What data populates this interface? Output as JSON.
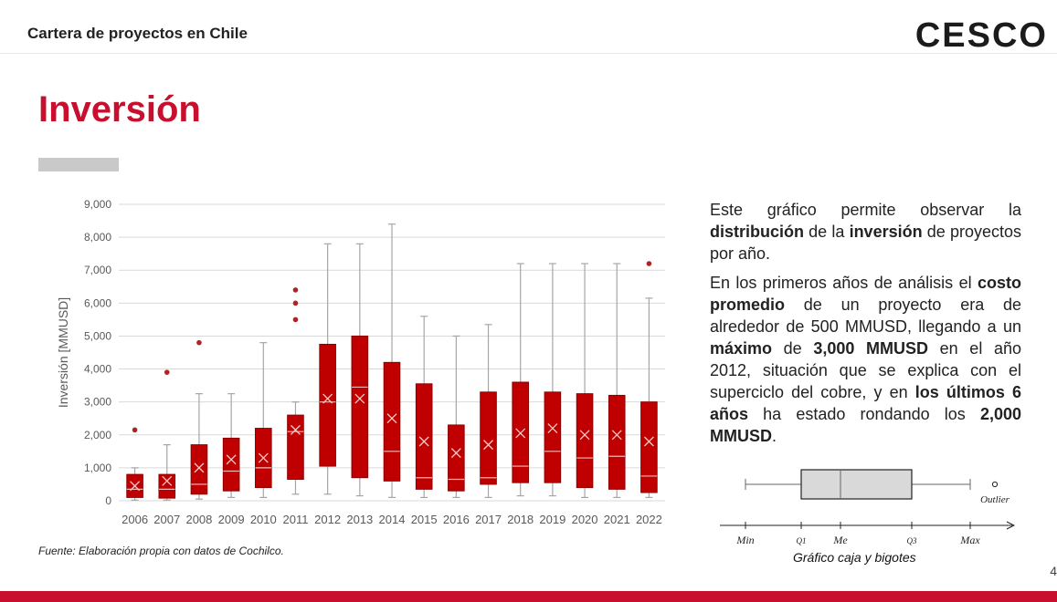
{
  "header": {
    "title": "Cartera de proyectos en Chile",
    "brand": "CESCO"
  },
  "page": {
    "title": "Inversión",
    "number": "4"
  },
  "source_note": "Fuente: Elaboración propia con datos de Cochilco.",
  "description": {
    "p1": [
      "Este gráfico permite observar la ",
      {
        "b": "distribución"
      },
      " de la ",
      {
        "b": "inversión"
      },
      " de proyectos por año."
    ],
    "p2": [
      "En los primeros años de análisis el ",
      {
        "b": "costo promedio"
      },
      " de un proyecto era de alrededor de 500 MMUSD, llegando a un ",
      {
        "b": "máximo"
      },
      " de ",
      {
        "b": "3,000 MMUSD"
      },
      " en el año 2012, situación que se explica con el superciclo del cobre, y en ",
      {
        "b": "los últimos 6 años"
      },
      " ha estado rondando los ",
      {
        "b": "2,000 MMUSD"
      },
      "."
    ]
  },
  "legend_box": {
    "labels": [
      "Min",
      "Q1",
      "Me",
      "Q3",
      "Max"
    ],
    "outlier_label": "Outlier",
    "caption": "Gráfico caja y bigotes"
  },
  "colors": {
    "accent": "#c8102e",
    "box_fill": "#c00000",
    "box_stroke": "#8b0000",
    "whisker": "#a6a6a6",
    "grid": "#d9d9d9"
  },
  "chart_data": {
    "type": "box",
    "title": "",
    "xlabel": "",
    "ylabel": "Inversión [MMUSD]",
    "ylim": [
      0,
      9000
    ],
    "yticks": [
      0,
      1000,
      2000,
      3000,
      4000,
      5000,
      6000,
      7000,
      8000,
      9000
    ],
    "ytick_labels": [
      "0",
      "1,000",
      "2,000",
      "3,000",
      "4,000",
      "5,000",
      "6,000",
      "7,000",
      "8,000",
      "9,000"
    ],
    "grid": true,
    "categories": [
      "2006",
      "2007",
      "2008",
      "2009",
      "2010",
      "2011",
      "2012",
      "2013",
      "2014",
      "2015",
      "2016",
      "2017",
      "2018",
      "2019",
      "2020",
      "2021",
      "2022"
    ],
    "boxes": [
      {
        "min": 20,
        "q1": 100,
        "median": 350,
        "q3": 800,
        "max": 1000,
        "mean": 450,
        "outliers": [
          2150
        ]
      },
      {
        "min": 20,
        "q1": 80,
        "median": 350,
        "q3": 800,
        "max": 1700,
        "mean": 600,
        "outliers": [
          3900
        ]
      },
      {
        "min": 50,
        "q1": 200,
        "median": 500,
        "q3": 1700,
        "max": 3250,
        "mean": 1000,
        "outliers": [
          4800
        ]
      },
      {
        "min": 100,
        "q1": 300,
        "median": 900,
        "q3": 1900,
        "max": 3250,
        "mean": 1250,
        "outliers": []
      },
      {
        "min": 100,
        "q1": 400,
        "median": 1000,
        "q3": 2200,
        "max": 4800,
        "mean": 1300,
        "outliers": []
      },
      {
        "min": 200,
        "q1": 650,
        "median": 2100,
        "q3": 2600,
        "max": 3000,
        "mean": 2150,
        "outliers": [
          5500,
          6000,
          6400
        ]
      },
      {
        "min": 200,
        "q1": 1050,
        "median": 3000,
        "q3": 4750,
        "max": 7800,
        "mean": 3100,
        "outliers": []
      },
      {
        "min": 150,
        "q1": 700,
        "median": 3450,
        "q3": 5000,
        "max": 7800,
        "mean": 3100,
        "outliers": []
      },
      {
        "min": 100,
        "q1": 600,
        "median": 1500,
        "q3": 4200,
        "max": 8400,
        "mean": 2500,
        "outliers": []
      },
      {
        "min": 100,
        "q1": 350,
        "median": 700,
        "q3": 3550,
        "max": 5600,
        "mean": 1800,
        "outliers": []
      },
      {
        "min": 100,
        "q1": 300,
        "median": 650,
        "q3": 2300,
        "max": 5000,
        "mean": 1450,
        "outliers": []
      },
      {
        "min": 100,
        "q1": 500,
        "median": 700,
        "q3": 3300,
        "max": 5350,
        "mean": 1700,
        "outliers": []
      },
      {
        "min": 150,
        "q1": 550,
        "median": 1050,
        "q3": 3600,
        "max": 7200,
        "mean": 2050,
        "outliers": []
      },
      {
        "min": 150,
        "q1": 550,
        "median": 1500,
        "q3": 3300,
        "max": 7200,
        "mean": 2200,
        "outliers": []
      },
      {
        "min": 100,
        "q1": 400,
        "median": 1300,
        "q3": 3250,
        "max": 7200,
        "mean": 2000,
        "outliers": []
      },
      {
        "min": 100,
        "q1": 350,
        "median": 1350,
        "q3": 3200,
        "max": 7200,
        "mean": 2000,
        "outliers": []
      },
      {
        "min": 100,
        "q1": 250,
        "median": 750,
        "q3": 3000,
        "max": 6150,
        "mean": 1800,
        "outliers": [
          7200
        ]
      }
    ]
  }
}
